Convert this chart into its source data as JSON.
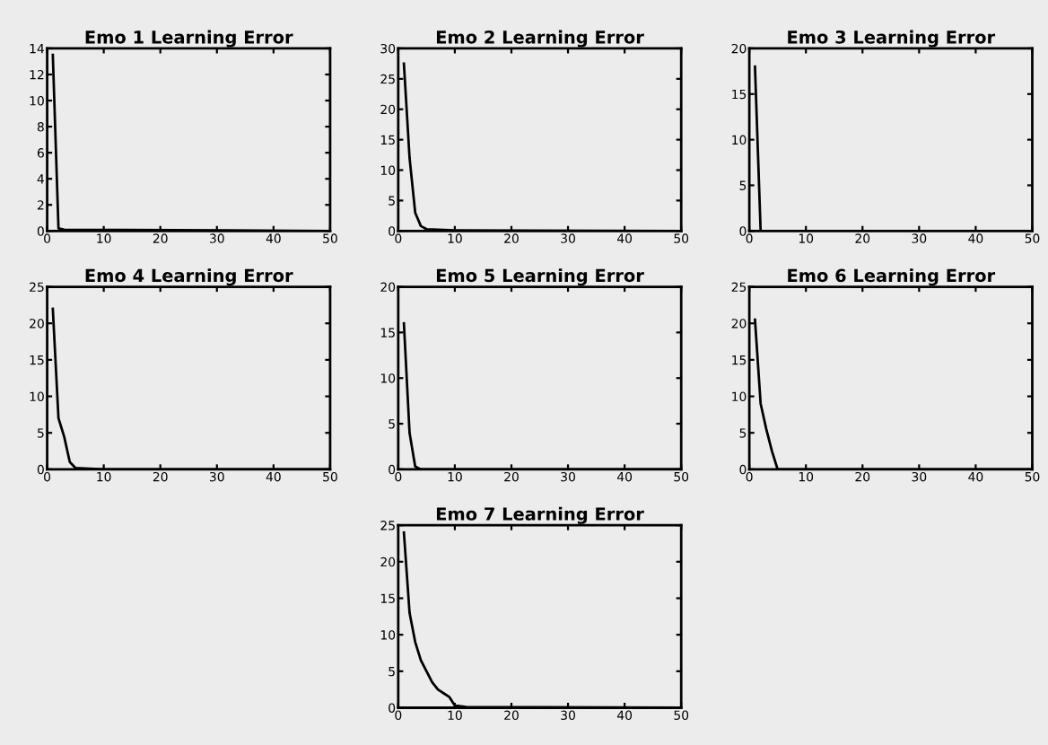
{
  "chart_data": [
    {
      "type": "line",
      "title": "Emo 1 Learning Error",
      "x": [
        1,
        2,
        3,
        50
      ],
      "series": [
        {
          "color": "#000000",
          "values": [
            13.5,
            0.2,
            0.1,
            0
          ]
        }
      ],
      "xlim": [
        0,
        50
      ],
      "xticks": [
        0,
        10,
        20,
        30,
        40,
        50
      ],
      "ylim": [
        0,
        14
      ],
      "yticks": [
        0,
        2,
        4,
        6,
        8,
        10,
        12,
        14
      ],
      "grid": false,
      "legend": false
    },
    {
      "type": "line",
      "title": "Emo 2 Learning Error",
      "x": [
        1,
        2,
        3,
        4,
        5,
        10,
        50
      ],
      "series": [
        {
          "color": "#000000",
          "values": [
            27.5,
            12,
            3,
            0.8,
            0.3,
            0.1,
            0
          ]
        }
      ],
      "xlim": [
        0,
        50
      ],
      "xticks": [
        0,
        10,
        20,
        30,
        40,
        50
      ],
      "ylim": [
        0,
        30
      ],
      "yticks": [
        0,
        5,
        10,
        15,
        20,
        25,
        30
      ],
      "grid": false,
      "legend": false
    },
    {
      "type": "line",
      "title": "Emo 3 Learning Error",
      "x": [
        1,
        2,
        50
      ],
      "series": [
        {
          "color": "#000000",
          "values": [
            18,
            0,
            0
          ]
        }
      ],
      "xlim": [
        0,
        50
      ],
      "xticks": [
        0,
        10,
        20,
        30,
        40,
        50
      ],
      "ylim": [
        0,
        20
      ],
      "yticks": [
        0,
        5,
        10,
        15,
        20
      ],
      "grid": false,
      "legend": false
    },
    {
      "type": "line",
      "title": "Emo 4 Learning Error",
      "x": [
        1,
        2,
        3,
        4,
        5,
        10,
        50
      ],
      "series": [
        {
          "color": "#000000",
          "values": [
            22,
            7,
            4.5,
            1,
            0.2,
            0,
            0
          ]
        }
      ],
      "xlim": [
        0,
        50
      ],
      "xticks": [
        0,
        10,
        20,
        30,
        40,
        50
      ],
      "ylim": [
        0,
        25
      ],
      "yticks": [
        0,
        5,
        10,
        15,
        20,
        25
      ],
      "grid": false,
      "legend": false
    },
    {
      "type": "line",
      "title": "Emo 5 Learning Error",
      "x": [
        1,
        2,
        3,
        4,
        50
      ],
      "series": [
        {
          "color": "#000000",
          "values": [
            16,
            4,
            0.3,
            0,
            0
          ]
        }
      ],
      "xlim": [
        0,
        50
      ],
      "xticks": [
        0,
        10,
        20,
        30,
        40,
        50
      ],
      "ylim": [
        0,
        20
      ],
      "yticks": [
        0,
        5,
        10,
        15,
        20
      ],
      "grid": false,
      "legend": false
    },
    {
      "type": "line",
      "title": "Emo 6 Learning Error",
      "x": [
        1,
        2,
        3,
        4,
        5,
        50
      ],
      "series": [
        {
          "color": "#000000",
          "values": [
            20.5,
            9,
            5.5,
            2.5,
            0,
            0
          ]
        }
      ],
      "xlim": [
        0,
        50
      ],
      "xticks": [
        0,
        10,
        20,
        30,
        40,
        50
      ],
      "ylim": [
        0,
        25
      ],
      "yticks": [
        0,
        5,
        10,
        15,
        20,
        25
      ],
      "grid": false,
      "legend": false
    },
    {
      "type": "line",
      "title": "Emo 7 Learning Error",
      "x": [
        1,
        2,
        3,
        4,
        5,
        6,
        7,
        8,
        9,
        10,
        12,
        50
      ],
      "series": [
        {
          "color": "#000000",
          "values": [
            24,
            13,
            9,
            6.5,
            5,
            3.5,
            2.5,
            2,
            1.5,
            0.3,
            0.1,
            0
          ]
        }
      ],
      "xlim": [
        0,
        50
      ],
      "xticks": [
        0,
        10,
        20,
        30,
        40,
        50
      ],
      "ylim": [
        0,
        25
      ],
      "yticks": [
        0,
        5,
        10,
        15,
        20,
        25
      ],
      "grid": false,
      "legend": false
    }
  ]
}
